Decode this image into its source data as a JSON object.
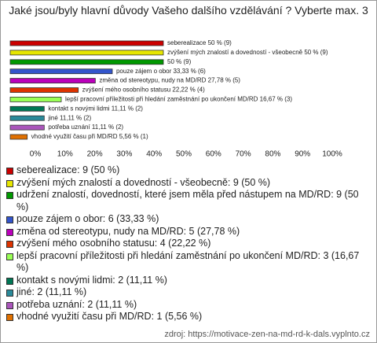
{
  "chart_data": {
    "type": "hbar",
    "title": "Jaké jsou/byly hlavní důvody Vašeho dalšího vzdělávání ? Vyberte max. 3",
    "values": [
      50,
      50,
      50,
      33.33,
      27.78,
      22.22,
      16.67,
      11.11,
      11.11,
      11.11,
      5.56
    ],
    "bar_labels": [
      "seberealizace 50 % (9)",
      "zvýšení mých znalostí a dovedností - všeobecně 50 % (9)",
      "50 % (9)",
      "pouze zájem o obor 33,33 % (6)",
      "změna od stereotypu, nudy na MD/RD 27,78 % (5)",
      "zvýšení mého osobního statusu 22,22 % (4)",
      "lepší pracovní příležitosti při hledání zaměstnání po ukončení MD/RD 16,67 % (3)",
      "kontakt s novými lidmi 11,11 % (2)",
      "jiné 11,11 % (2)",
      "potřeba uznání 11,11 % (2)",
      "vhodné využití času při MD/RD 5,56 % (1)"
    ],
    "legend_labels": [
      "seberealizace: 9 (50 %)",
      "zvýšení mých znalostí a dovedností - všeobecně: 9 (50 %)",
      "udržení znalostí, dovedností, které jsem měla před nástupem na MD/RD: 9 (50 %)",
      "pouze zájem o obor: 6 (33,33 %)",
      "změna od stereotypu, nudy na MD/RD: 5 (27,78 %)",
      "zvýšení mého osobního statusu: 4 (22,22 %)",
      "lepší pracovní příležitosti při hledání zaměstnání po ukončení MD/RD: 3 (16,67 %)",
      "kontakt s novými lidmi: 2 (11,11 %)",
      "jiné: 2 (11,11 %)",
      "potřeba uznání: 2 (11,11 %)",
      "vhodné využití času při MD/RD: 1 (5,56 %)"
    ],
    "colors": [
      "#cc0000",
      "#e6e600",
      "#009900",
      "#3355cc",
      "#bb00bb",
      "#dd3300",
      "#99ff55",
      "#007755",
      "#2a8a9a",
      "#aa55bb",
      "#e07000"
    ],
    "xlim": [
      0,
      100
    ],
    "xticks": [
      {
        "value": 0,
        "label": "0%"
      },
      {
        "value": 10,
        "label": "10%"
      },
      {
        "value": 20,
        "label": "20%"
      },
      {
        "value": 30,
        "label": "30%"
      },
      {
        "value": 40,
        "label": "40%"
      },
      {
        "value": 50,
        "label": "50%"
      },
      {
        "value": 60,
        "label": "60%"
      },
      {
        "value": 70,
        "label": "70%"
      },
      {
        "value": 80,
        "label": "80%"
      },
      {
        "value": 90,
        "label": "90%"
      },
      {
        "value": 100,
        "label": "100%"
      }
    ],
    "source": "zdroj: https://motivace-zen-na-md-rd-k-dals.vyplnto.cz"
  }
}
